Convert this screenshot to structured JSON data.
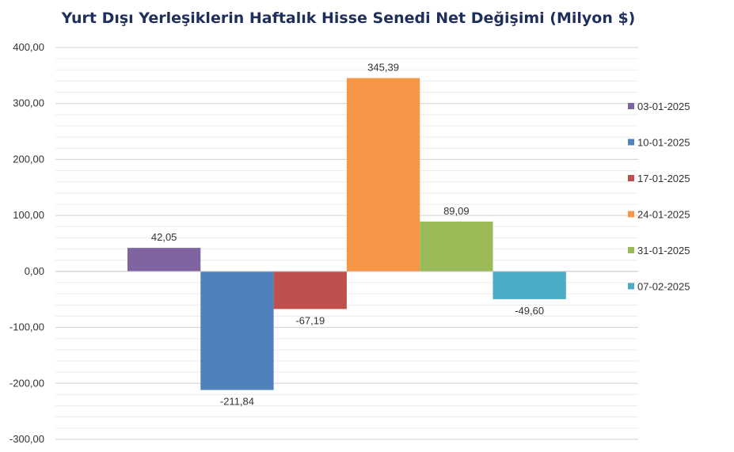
{
  "chart_data": {
    "type": "bar",
    "title": "Yurt Dışı Yerleşiklerin Haftalık Hisse Senedi Net Değişimi (Milyon $)",
    "xlabel": "",
    "ylabel": "",
    "ylim": [
      -300,
      400
    ],
    "y_ticks": [
      400,
      300,
      200,
      100,
      0,
      -100,
      -200,
      -300
    ],
    "y_tick_labels": [
      "400,00",
      "300,00",
      "200,00",
      "100,00",
      "0,00",
      "-100,00",
      "-200,00",
      "-300,00"
    ],
    "grid": true,
    "legend_position": "right",
    "series": [
      {
        "name": "03-01-2025",
        "value": 42.05,
        "label": "42,05",
        "color": "#8064a2"
      },
      {
        "name": "10-01-2025",
        "value": -211.84,
        "label": "-211,84",
        "color": "#4f81bd"
      },
      {
        "name": "17-01-2025",
        "value": -67.19,
        "label": "-67,19",
        "color": "#c0504d"
      },
      {
        "name": "24-01-2025",
        "value": 345.39,
        "label": "345,39",
        "color": "#f79646"
      },
      {
        "name": "31-01-2025",
        "value": 89.09,
        "label": "89,09",
        "color": "#9bbb59"
      },
      {
        "name": "07-02-2025",
        "value": -49.6,
        "label": "-49,60",
        "color": "#4bacc6"
      }
    ]
  }
}
